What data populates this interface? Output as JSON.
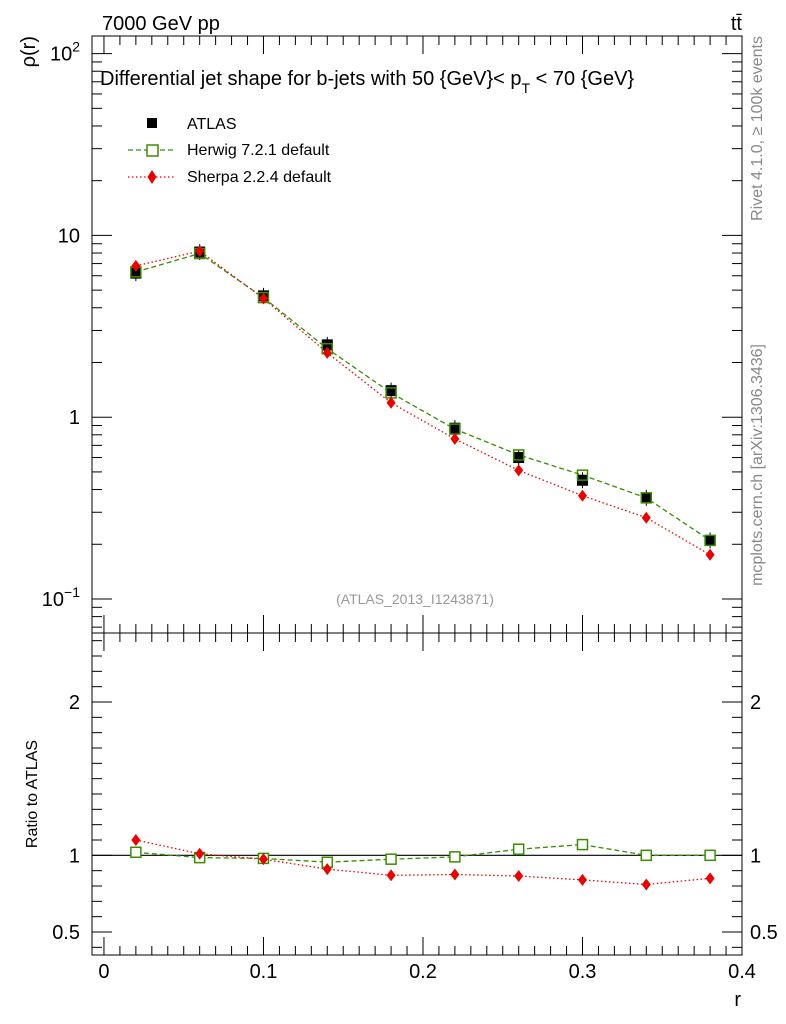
{
  "header": {
    "left": "7000 GeV pp",
    "right": "tt̄"
  },
  "side_labels": {
    "rivet": "Rivet 4.1.0, ≥ 100k events",
    "mcplots": "mcplots.cern.ch [arXiv:1306.3436]"
  },
  "colors": {
    "atlas": "#000000",
    "herwig": "#3a8d00",
    "sherpa": "#ee0000",
    "reference_line": "#000000"
  },
  "chart_data": [
    {
      "type": "line",
      "panel": "main",
      "title_parts": {
        "prefix": "Differential jet shape for b-jets with 50 {GeV}< p",
        "subscript": "T",
        "suffix": " < 70 {GeV}"
      },
      "ylabel": "ρ(r)",
      "xlabel": "",
      "yscale": "log",
      "ylim": [
        0.065,
        125
      ],
      "xlim": [
        -0.0075,
        0.4
      ],
      "y_ticks": [
        {
          "value": 0.1,
          "mantissa": "10",
          "exponent": "−1"
        },
        {
          "value": 1,
          "mantissa": "1",
          "exponent": ""
        },
        {
          "value": 10,
          "mantissa": "10",
          "exponent": ""
        },
        {
          "value": 100,
          "mantissa": "10",
          "exponent": "2"
        }
      ],
      "annotation": "(ATLAS_2013_I1243871)",
      "legend": [
        "ATLAS",
        "Herwig 7.2.1 default",
        "Sherpa 2.2.4 default"
      ],
      "legend_position": "top-left",
      "x": [
        0.02,
        0.06,
        0.1,
        0.14,
        0.18,
        0.22,
        0.26,
        0.3,
        0.34,
        0.38
      ],
      "series": [
        {
          "name": "ATLAS",
          "style": "marker",
          "values": [
            6.2,
            8.1,
            4.65,
            2.5,
            1.4,
            0.87,
            0.6,
            0.45,
            0.36,
            0.21
          ]
        },
        {
          "name": "Herwig 7.2.1 default",
          "style": "dashed",
          "values": [
            6.3,
            7.95,
            4.55,
            2.38,
            1.36,
            0.86,
            0.62,
            0.48,
            0.36,
            0.21
          ]
        },
        {
          "name": "Sherpa 2.2.4 default",
          "style": "dotted",
          "values": [
            6.8,
            8.2,
            4.5,
            2.26,
            1.2,
            0.76,
            0.51,
            0.37,
            0.28,
            0.175
          ]
        }
      ]
    },
    {
      "type": "line",
      "panel": "ratio",
      "ylabel": "Ratio to ATLAS",
      "xlabel": "r",
      "ylim": [
        0.35,
        2.45
      ],
      "xlim": [
        -0.0075,
        0.4
      ],
      "y_ticks": [
        0.5,
        1,
        2
      ],
      "y_tick_labels": [
        "0.5",
        "1",
        "2"
      ],
      "x_ticks": [
        0,
        0.1,
        0.2,
        0.3,
        0.4
      ],
      "x_tick_labels": [
        "0",
        "0.1",
        "0.2",
        "0.3",
        "0.4"
      ],
      "reference": 1,
      "x": [
        0.02,
        0.06,
        0.1,
        0.14,
        0.18,
        0.22,
        0.26,
        0.3,
        0.34,
        0.38
      ],
      "series": [
        {
          "name": "Herwig 7.2.1 default",
          "style": "dashed",
          "values": [
            1.02,
            0.985,
            0.98,
            0.955,
            0.975,
            0.99,
            1.04,
            1.07,
            1.0,
            1.0
          ]
        },
        {
          "name": "Sherpa 2.2.4 default",
          "style": "dotted",
          "values": [
            1.1,
            1.01,
            0.975,
            0.91,
            0.87,
            0.875,
            0.865,
            0.84,
            0.81,
            0.85
          ]
        }
      ]
    }
  ]
}
